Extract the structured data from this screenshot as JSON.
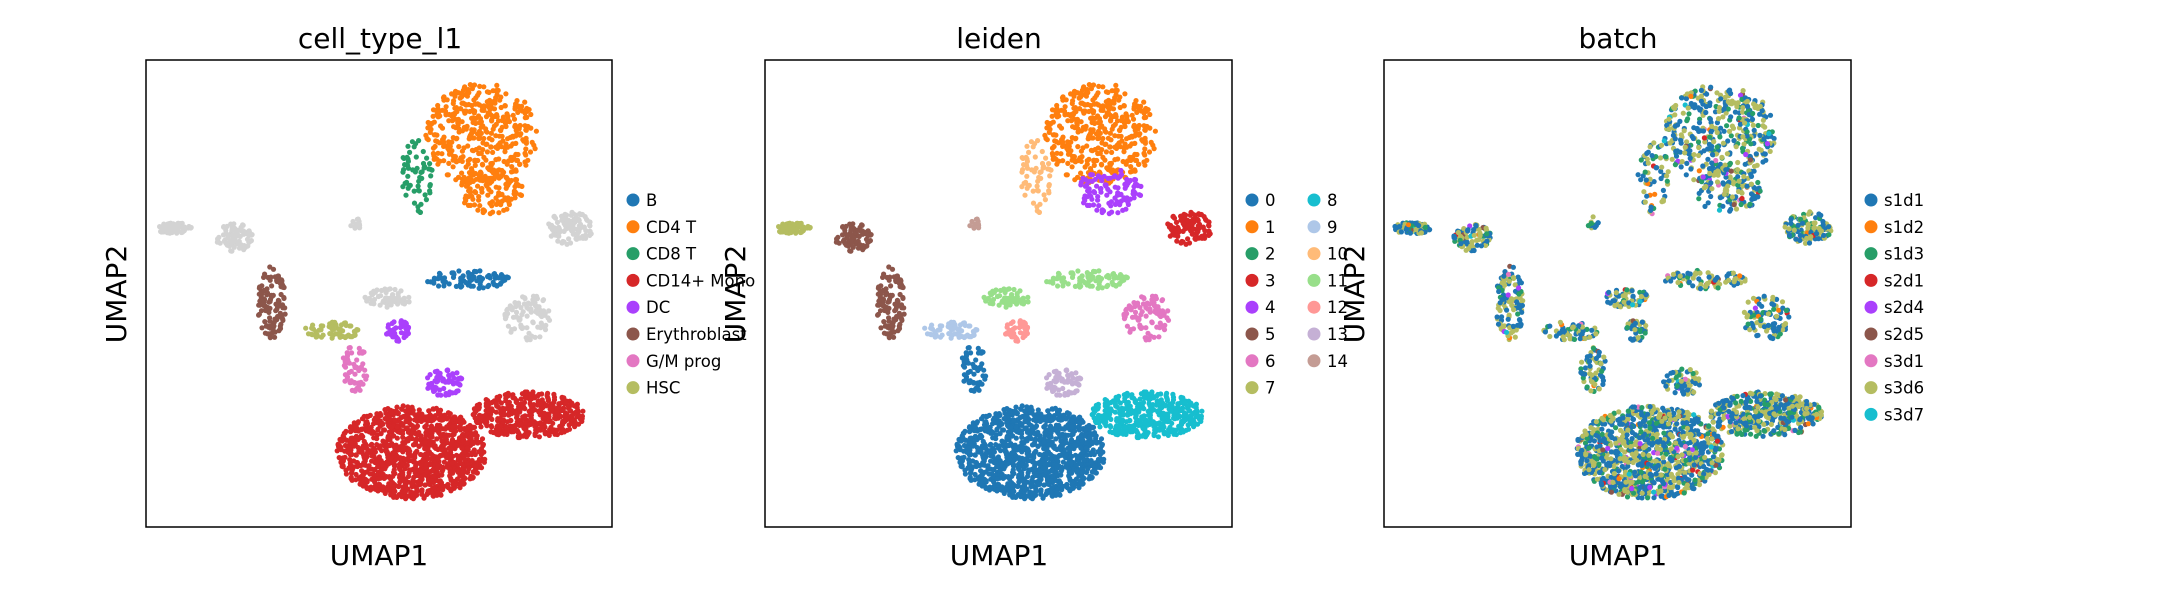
{
  "figure": {
    "kind": "UMAP embedding scatter panels"
  },
  "chart_data": [
    {
      "type": "scatter",
      "title": "cell_type_l1",
      "xlabel": "UMAP1",
      "ylabel": "UMAP2",
      "xticks": [],
      "yticks": [],
      "legend_position": "right",
      "legend_columns": 1,
      "categories": [
        {
          "name": "B",
          "color": "#1f77b4"
        },
        {
          "name": "CD4 T",
          "color": "#ff7f0e"
        },
        {
          "name": "CD8 T",
          "color": "#279e68"
        },
        {
          "name": "CD14+ Mono",
          "color": "#d62728"
        },
        {
          "name": "DC",
          "color": "#aa40fc"
        },
        {
          "name": "Erythroblast",
          "color": "#8c564b"
        },
        {
          "name": "G/M prog",
          "color": "#e377c2"
        },
        {
          "name": "HSC",
          "color": "#b5bd61"
        }
      ],
      "other_points_color": "#d3d3d3"
    },
    {
      "type": "scatter",
      "title": "leiden",
      "xlabel": "UMAP1",
      "ylabel": "UMAP2",
      "xticks": [],
      "yticks": [],
      "legend_position": "right",
      "legend_columns": 2,
      "categories": [
        {
          "name": "0",
          "color": "#1f77b4"
        },
        {
          "name": "1",
          "color": "#ff7f0e"
        },
        {
          "name": "2",
          "color": "#279e68"
        },
        {
          "name": "3",
          "color": "#d62728"
        },
        {
          "name": "4",
          "color": "#aa40fc"
        },
        {
          "name": "5",
          "color": "#8c564b"
        },
        {
          "name": "6",
          "color": "#e377c2"
        },
        {
          "name": "7",
          "color": "#b5bd61"
        },
        {
          "name": "8",
          "color": "#17becf"
        },
        {
          "name": "9",
          "color": "#aec7e8"
        },
        {
          "name": "10",
          "color": "#ffbb78"
        },
        {
          "name": "11",
          "color": "#98df8a"
        },
        {
          "name": "12",
          "color": "#ff9896"
        },
        {
          "name": "13",
          "color": "#c5b0d5"
        },
        {
          "name": "14",
          "color": "#c49c94"
        }
      ]
    },
    {
      "type": "scatter",
      "title": "batch",
      "xlabel": "UMAP1",
      "ylabel": "UMAP2",
      "xticks": [],
      "yticks": [],
      "legend_position": "right",
      "legend_columns": 1,
      "categories": [
        {
          "name": "s1d1",
          "color": "#1f77b4"
        },
        {
          "name": "s1d2",
          "color": "#ff7f0e"
        },
        {
          "name": "s1d3",
          "color": "#279e68"
        },
        {
          "name": "s2d1",
          "color": "#d62728"
        },
        {
          "name": "s2d4",
          "color": "#aa40fc"
        },
        {
          "name": "s2d5",
          "color": "#8c564b"
        },
        {
          "name": "s3d1",
          "color": "#e377c2"
        },
        {
          "name": "s3d6",
          "color": "#b5bd61"
        },
        {
          "name": "s3d7",
          "color": "#17becf"
        }
      ]
    }
  ]
}
